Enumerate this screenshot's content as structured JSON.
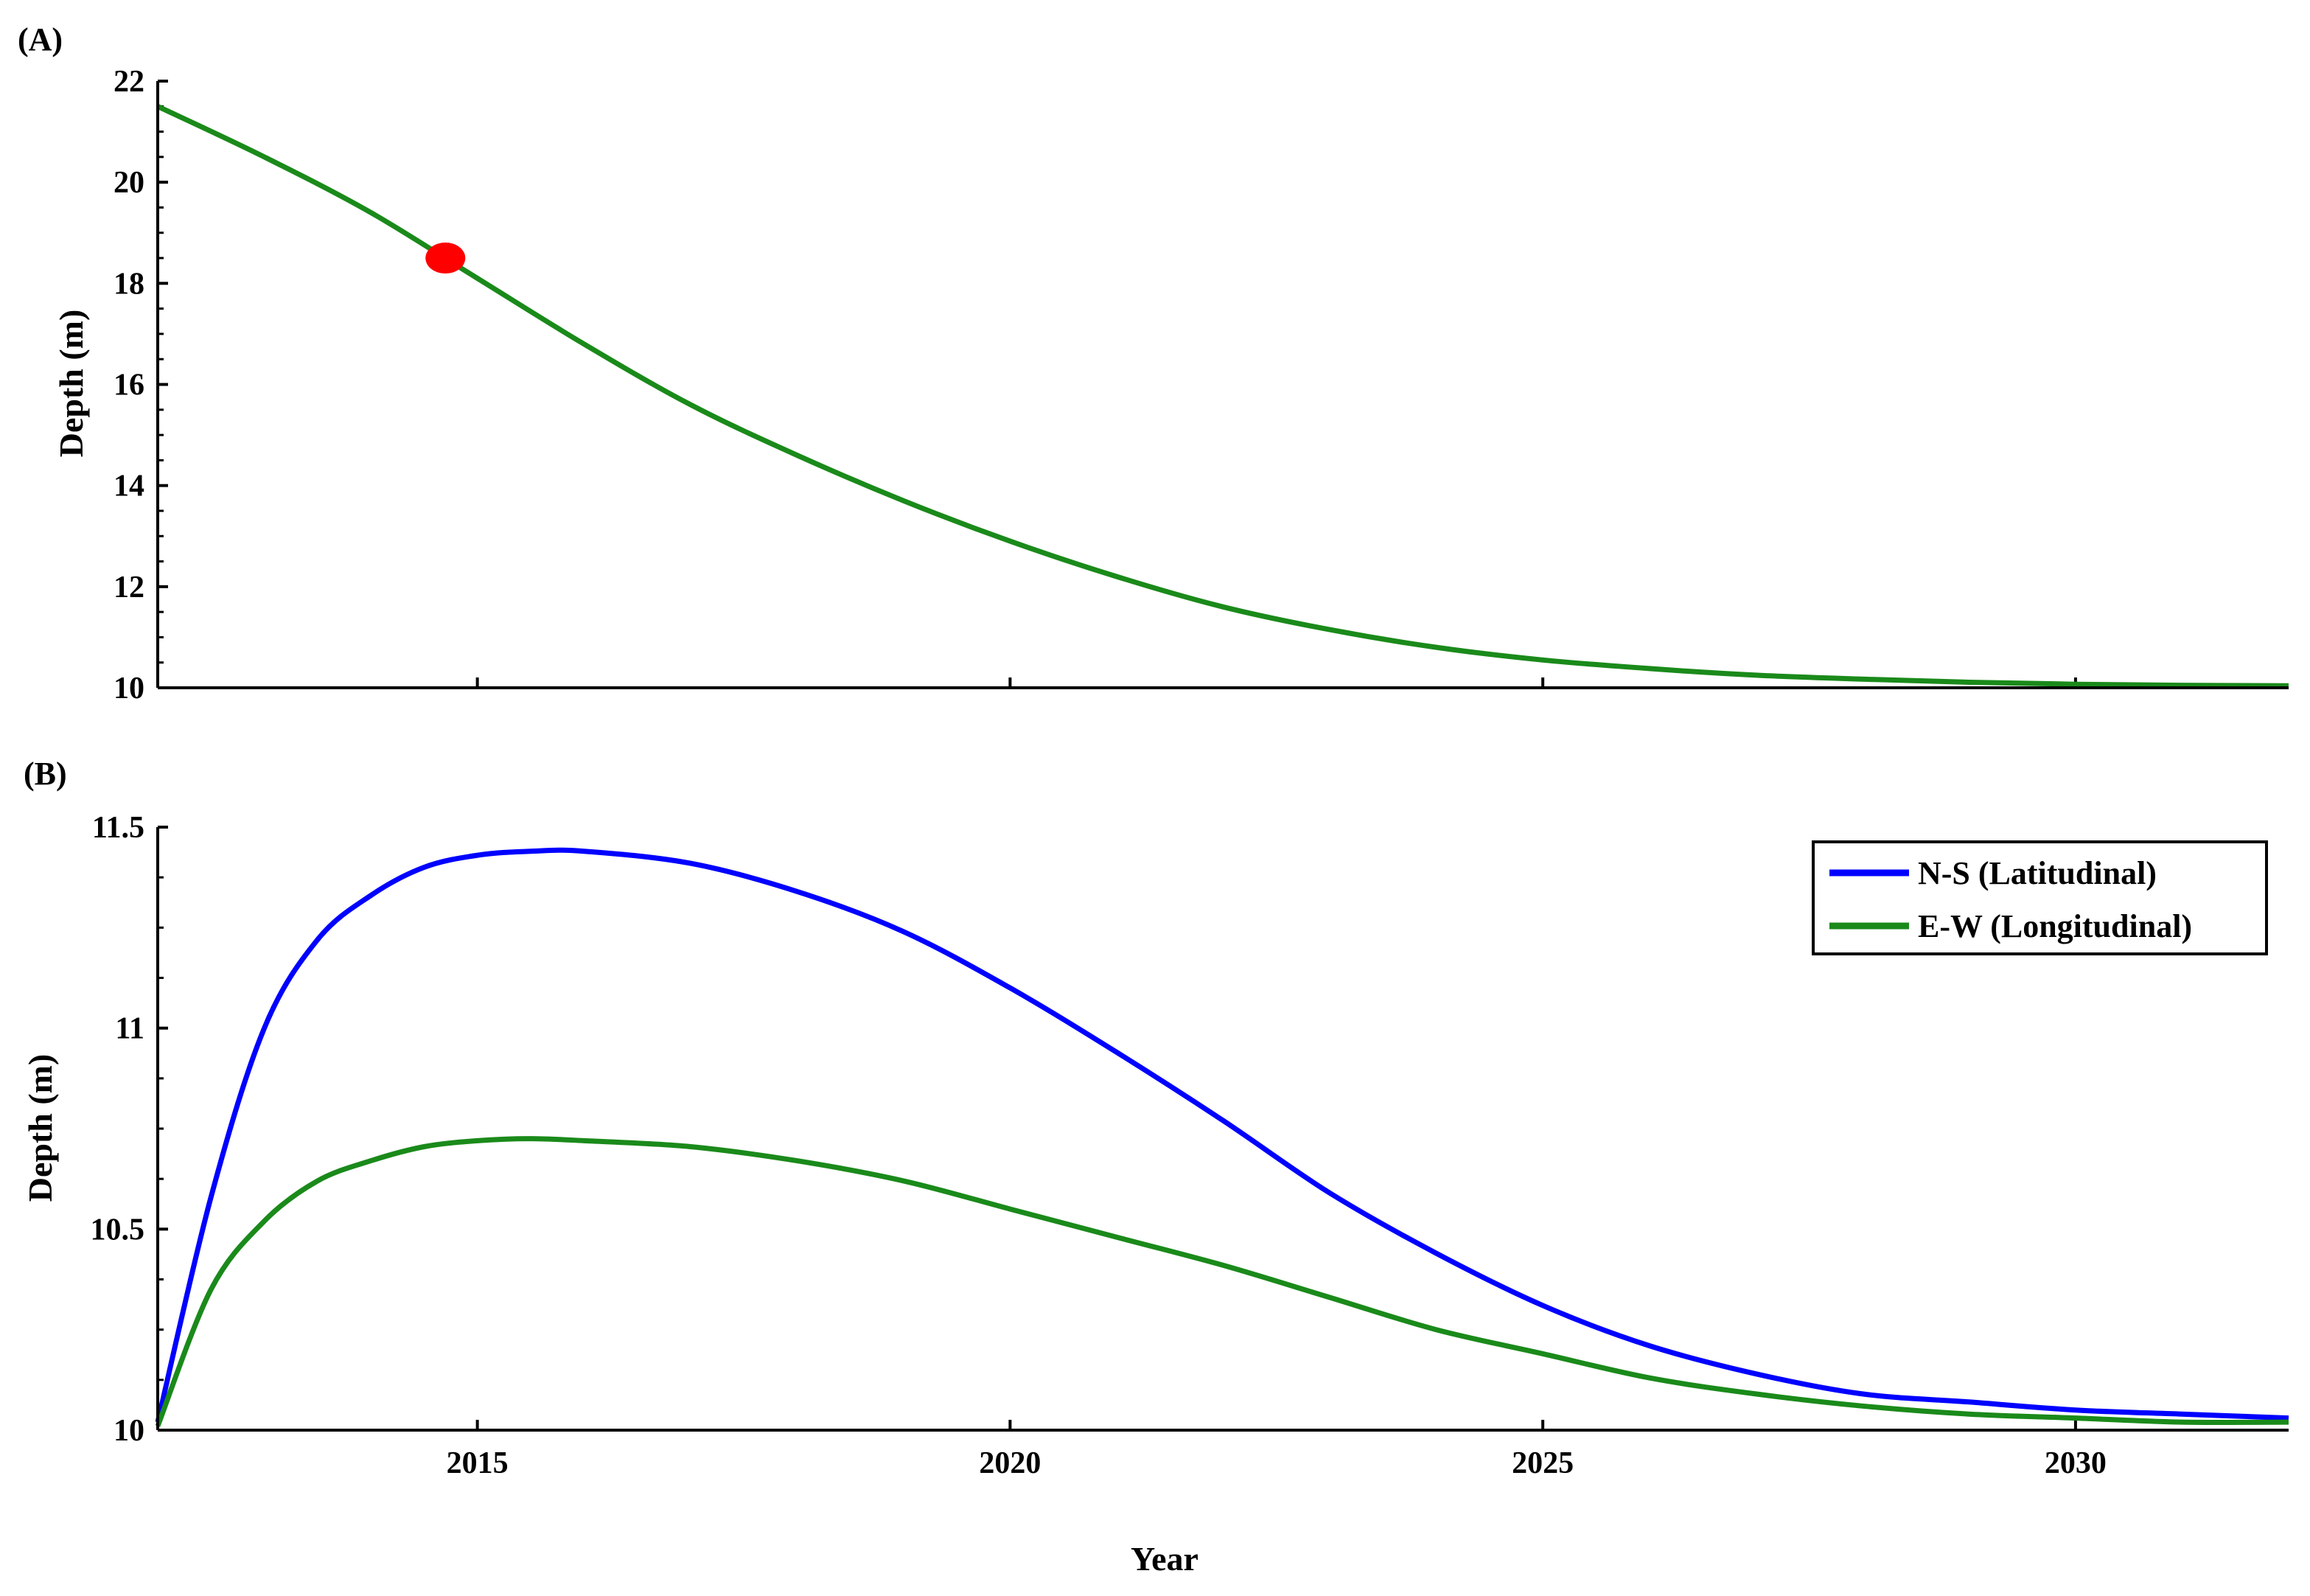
{
  "chart_data": [
    {
      "panel_label": "(A)",
      "type": "line",
      "ylabel": "Depth (m)",
      "xlim": [
        2012,
        2032
      ],
      "ylim": [
        10,
        22
      ],
      "yticks": [
        "10",
        "12",
        "14",
        "16",
        "18",
        "20",
        "22"
      ],
      "ytick_values": [
        10,
        12,
        14,
        16,
        18,
        20,
        22
      ],
      "xtick_values": [
        2015,
        2020,
        2025,
        2030
      ],
      "series": [
        {
          "color": "#1a8a1a",
          "x": [
            2012,
            2013,
            2014,
            2015,
            2016,
            2017,
            2018,
            2019,
            2020,
            2021,
            2022,
            2023,
            2024,
            2025,
            2026,
            2027,
            2028,
            2029,
            2030,
            2031,
            2032
          ],
          "values": [
            21.5,
            20.5,
            19.4,
            18.1,
            16.8,
            15.6,
            14.6,
            13.7,
            12.9,
            12.2,
            11.6,
            11.15,
            10.8,
            10.55,
            10.38,
            10.25,
            10.17,
            10.11,
            10.07,
            10.05,
            10.04
          ]
        }
      ],
      "marker": {
        "x": 2014.7,
        "y": 18.5,
        "color": "#ff0000"
      }
    },
    {
      "panel_label": "(B)",
      "type": "line",
      "xlabel": "Year",
      "ylabel": "Depth (m)",
      "xlim": [
        2012,
        2032
      ],
      "ylim": [
        10,
        11.5
      ],
      "yticks": [
        "10",
        "10.5",
        "11",
        "11.5"
      ],
      "ytick_values": [
        10,
        10.5,
        11,
        11.5
      ],
      "xticks": [
        "2015",
        "2020",
        "2025",
        "2030"
      ],
      "xtick_values": [
        2015,
        2020,
        2025,
        2030
      ],
      "legend_position": "top-right",
      "series": [
        {
          "name": "N-S (Latitudinal)",
          "color": "#0000ff",
          "x": [
            2012,
            2012.5,
            2013,
            2013.5,
            2014,
            2014.5,
            2015,
            2015.5,
            2016,
            2017,
            2018,
            2019,
            2020,
            2021,
            2022,
            2023,
            2024,
            2025,
            2026,
            2027,
            2028,
            2029,
            2030,
            2031,
            2032
          ],
          "values": [
            10.02,
            10.58,
            11.0,
            11.22,
            11.33,
            11.4,
            11.43,
            11.44,
            11.44,
            11.41,
            11.34,
            11.24,
            11.1,
            10.94,
            10.77,
            10.59,
            10.44,
            10.31,
            10.21,
            10.14,
            10.09,
            10.07,
            10.05,
            10.04,
            10.03
          ]
        },
        {
          "name": "E-W (Longitudinal)",
          "color": "#1a8a1a",
          "x": [
            2012,
            2012.5,
            2013,
            2013.5,
            2014,
            2014.5,
            2015,
            2015.5,
            2016,
            2017,
            2018,
            2019,
            2020,
            2021,
            2022,
            2023,
            2024,
            2025,
            2026,
            2027,
            2028,
            2029,
            2030,
            2031,
            2032
          ],
          "values": [
            10.01,
            10.35,
            10.52,
            10.62,
            10.67,
            10.705,
            10.72,
            10.725,
            10.72,
            10.705,
            10.67,
            10.62,
            10.55,
            10.48,
            10.41,
            10.33,
            10.25,
            10.19,
            10.13,
            10.09,
            10.06,
            10.04,
            10.03,
            10.02,
            10.02
          ]
        }
      ]
    }
  ]
}
